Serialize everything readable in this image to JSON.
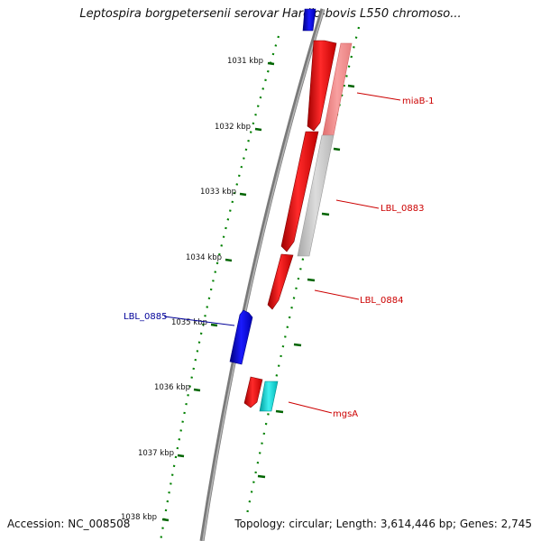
{
  "title": "Leptospira borgpetersenii serovar Hardjo-bovis L550 chromoso...",
  "footer": {
    "accession": "Accession: NC_008508",
    "info": "Topology: circular; Length: 3,614,446 bp; Genes: 2,745"
  },
  "ticks": [
    {
      "label": "1031 kbp"
    },
    {
      "label": "1032 kbp"
    },
    {
      "label": "1033 kbp"
    },
    {
      "label": "1034 kbp"
    },
    {
      "label": "1035 kbp"
    },
    {
      "label": "1036 kbp"
    },
    {
      "label": "1037 kbp"
    },
    {
      "label": "1038 kbp"
    }
  ],
  "genes": [
    {
      "name": "miaB-1",
      "color": "#cc0000"
    },
    {
      "name": "LBL_0883",
      "color": "#cc0000"
    },
    {
      "name": "LBL_0884",
      "color": "#cc0000"
    },
    {
      "name": "LBL_0885",
      "color": "#000099"
    },
    {
      "name": "mgsA",
      "color": "#cc0000"
    }
  ],
  "colors": {
    "forward": "#ff0000",
    "reverse": "#0000ff",
    "backbone": "#808080",
    "similarity_red": "#f08080",
    "similarity_gray": "#c0c0c0",
    "similarity_cyan": "#00cccc",
    "gc_dots": "#008000"
  }
}
